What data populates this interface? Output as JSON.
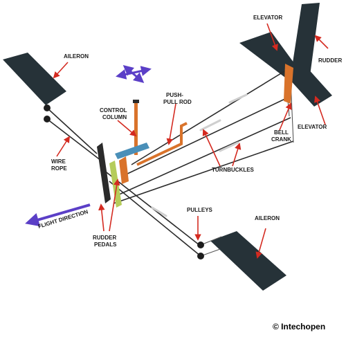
{
  "labels": {
    "aileron_left": "AILERON",
    "aileron_right": "AILERON",
    "elevator_top": "ELEVATOR",
    "elevator_right": "ELEVATOR",
    "rudder": "RUDDER",
    "control_column_1": "CONTROL",
    "control_column_2": "COLUMN",
    "push_pull_rod_1": "PUSH-",
    "push_pull_rod_2": "PULL ROD",
    "bell_crank_1": "BELL",
    "bell_crank_2": "CRANK",
    "turnbuckles": "TURNBUCKLES",
    "wire_rope_1": "WIRE",
    "wire_rope_2": "ROPE",
    "pulleys": "PULLEYS",
    "rudder_pedals_1": "RUDDER",
    "rudder_pedals_2": "PEDALS",
    "flight_direction": "FLIGHT DIRECTION"
  },
  "credit": "© Intechopen",
  "colors": {
    "surface": "#263238",
    "callout_arrow": "#d42a20",
    "direction_arrow": "#5b3fc7",
    "rod": "#d9732b",
    "column_blue": "#4a8fb8",
    "pedal_green": "#b5cc5a",
    "cable": "#2b2b2b"
  }
}
